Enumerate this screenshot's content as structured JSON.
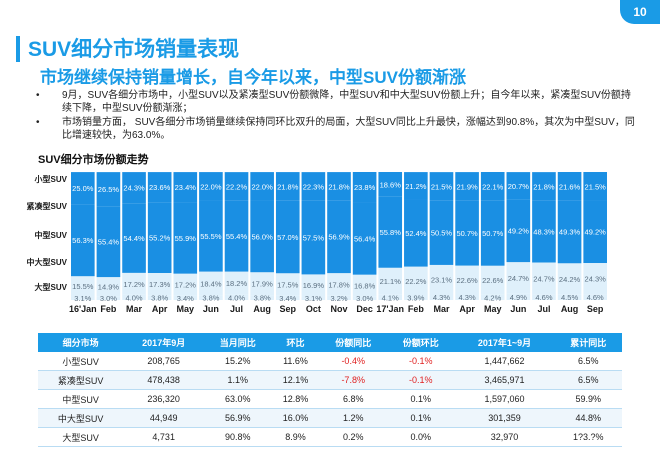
{
  "slide_number": "10",
  "title": "SUV细分市场销量表现",
  "subtitle": "市场继续保持销量增长，自今年以来，中型SUV份额渐涨",
  "bullets": [
    {
      "marker": "•",
      "text": "9月，SUV各细分市场中，小型SUV以及紧凑型SUV份额微降，中型SUV和中大型SUV份额上升；自今年以来，紧凑型SUV份额持续下降，中型SUV份额渐涨；"
    },
    {
      "marker": "•",
      "text": "市场销量方面， SUV各细分市场销量继续保持同环比双升的局面，大型SUV同比上升最快，涨幅达到90.8%，其次为中型SUV，同比增速较快，为63.0%。"
    }
  ],
  "chart_data": {
    "type": "bar",
    "stacked": true,
    "orientation": "vertical",
    "title": "SUV细分市场份额走势",
    "categories": [
      "16'Jan",
      "Feb",
      "Mar",
      "Apr",
      "May",
      "Jun",
      "Jul",
      "Aug",
      "Sep",
      "Oct",
      "Nov",
      "Dec",
      "17'Jan",
      "Feb",
      "Mar",
      "Apr",
      "May",
      "Jun",
      "Jul",
      "Aug",
      "Sep"
    ],
    "series": [
      {
        "name": "大型SUV",
        "values": [
          "3.1%",
          "3.0%",
          "4.0%",
          "3.8%",
          "3.4%",
          "3.8%",
          "4.0%",
          "3.8%",
          "3.4%",
          "3.1%",
          "3.2%",
          "3.0%",
          "4.1%",
          "3.9%",
          "4.3%",
          "4.3%",
          "4.2%",
          "4.9%",
          "4.6%",
          "4.5%",
          "4.6%"
        ]
      },
      {
        "name": "中大型SUV",
        "values": [
          "15.5%",
          "14.9%",
          "17.2%",
          "17.3%",
          "17.2%",
          "18.4%",
          "18.2%",
          "17.9%",
          "17.5%",
          "16.9%",
          "17.8%",
          "16.8%",
          "21.1%",
          "22.2%",
          "23.1%",
          "22.6%",
          "22.6%",
          "24.7%",
          "24.7%",
          "24.2%",
          "24.3%"
        ]
      },
      {
        "name": "中型SUV",
        "values": [
          "56.3%",
          "55.4%",
          "54.4%",
          "55.2%",
          "55.9%",
          "55.5%",
          "55.4%",
          "56.0%",
          "57.0%",
          "57.5%",
          "56.9%",
          "56.4%",
          "55.8%",
          "52.4%",
          "50.5%",
          "50.7%",
          "50.7%",
          "49.2%",
          "48.3%",
          "49.3%",
          "49.2%"
        ]
      },
      {
        "name": "紧凑型SUV",
        "values": [
          "25.0%",
          "26.5%",
          "24.3%",
          "23.6%",
          "23.4%",
          "22.0%",
          "22.2%",
          "22.0%",
          "21.8%",
          "22.3%",
          "21.8%",
          "23.8%",
          "18.6%",
          "21.2%",
          "21.5%",
          "21.9%",
          "22.1%",
          "20.7%",
          "21.8%",
          "21.6%",
          "21.5%"
        ]
      }
    ],
    "row_labels": [
      "小型SUV",
      "紧凑型SUV",
      "中型SUV",
      "中大型SUV",
      "大型SUV"
    ],
    "colors": {
      "band_main": "#1a8fe3",
      "band_light": "#dff0fb",
      "label_main": "#ffffff",
      "label_light": "#5b6f80",
      "row_label": "#1a1a1a"
    },
    "ylim": [
      0,
      100
    ],
    "legend": "none",
    "grid": false
  },
  "table": {
    "headers": [
      "细分市场",
      "2017年9月",
      "当月同比",
      "环比",
      "份额同比",
      "份额环比",
      "2017年1~9月",
      "累计同比"
    ],
    "rows": [
      [
        "小型SUV",
        "208,765",
        "15.2%",
        "11.6%",
        "-0.4%",
        "-0.1%",
        "1,447,662",
        "6.5%"
      ],
      [
        "紧凑型SUV",
        "478,438",
        "1.1%",
        "12.1%",
        "-7.8%",
        "-0.1%",
        "3,465,971",
        "6.5%"
      ],
      [
        "中型SUV",
        "236,320",
        "63.0%",
        "12.8%",
        "6.8%",
        "0.1%",
        "1,597,060",
        "59.9%"
      ],
      [
        "中大型SUV",
        "44,949",
        "56.9%",
        "16.0%",
        "1.2%",
        "0.1%",
        "301,359",
        "44.8%"
      ],
      [
        "大型SUV",
        "4,731",
        "90.8%",
        "8.9%",
        "0.2%",
        "0.0%",
        "32,970",
        "1?3.?%"
      ]
    ]
  }
}
